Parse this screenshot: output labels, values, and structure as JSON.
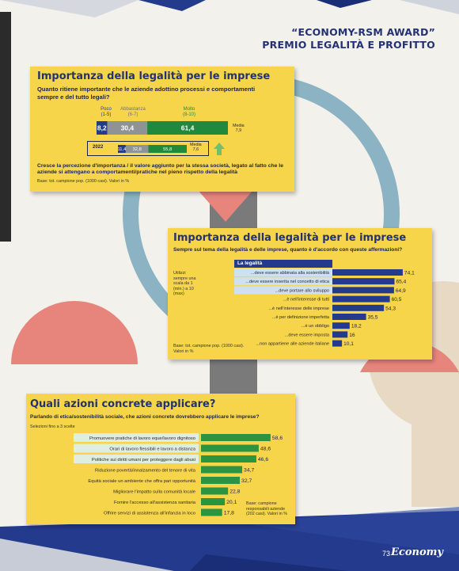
{
  "header": {
    "line1": "“ECONOMY-RSM AWARD”",
    "line2": "PREMIO LEGALITÀ E PROFITTO"
  },
  "chart1": {
    "title": "Importanza della legalità per le imprese",
    "question": "Quanto ritiene importante che le aziende adottino processi e comportamenti sempre e del tutto legali?",
    "legend": [
      {
        "label": "Poco",
        "range": "(1-5)",
        "color": "#243a8c"
      },
      {
        "label": "Abbastanza",
        "range": "(6-7)",
        "color": "#8d9396"
      },
      {
        "label": "Molto",
        "range": "(8-10)",
        "color": "#1f8a3b"
      }
    ],
    "media_label": "Media",
    "media_value": "7,9",
    "year": "2022",
    "media_2022_label": "Media",
    "media_2022_value": "7,6",
    "note": "Cresce la percezione d'importanza / il valore aggiunto per la stessa società, legato al fatto che le aziende si attengano a comportamenti/pratiche nel pieno rispetto della legalità",
    "base": "Base: tot. campione pop. (1000 casi). Valori in %"
  },
  "chart2": {
    "title": "Importanza della legalità per le imprese",
    "question": "Sempre sul tema della legalità e delle imprese, quanto è d'accordo con queste affermazioni?",
    "header_label": "La legalità",
    "side_note": "Utilizzi sempre una scala da 1 (min.) a 10 (max)",
    "base": "Base: tot. campione pop. (1000 casi). Valori in %"
  },
  "chart3": {
    "title": "Quali azioni concrete applicare?",
    "question": "Parlando di etica/sostenibilità sociale, che azioni concrete dovrebbero applicare le imprese?",
    "sub": "Selezioni fino a 3 scelte",
    "base": "Base: campione responsabili aziende (202 casi). Valori in %"
  },
  "footer": {
    "page": "73",
    "brand": "Economy"
  },
  "chart_data": [
    {
      "type": "bar",
      "stacked": true,
      "title": "Importanza della legalità per le imprese",
      "categories": [
        "Oggi",
        "2022"
      ],
      "series": [
        {
          "name": "Poco (1-5)",
          "values": [
            8.2,
            11.4
          ]
        },
        {
          "name": "Abbastanza (6-7)",
          "values": [
            30.4,
            32.8
          ]
        },
        {
          "name": "Molto (8-10)",
          "values": [
            61.4,
            55.8
          ]
        }
      ],
      "labels": [
        [
          "8,2",
          "30,4",
          "61,4"
        ],
        [
          "11,4",
          "32,8",
          "55,8"
        ]
      ],
      "xlim": [
        0,
        100
      ]
    },
    {
      "type": "bar",
      "orientation": "horizontal",
      "title": "Importanza della legalità per le imprese",
      "categories": [
        "...deve essere abbinata alla sostenibilità",
        "...deve essere inserita nel concetto di etica",
        "...deve portare allo sviluppo",
        "...è nell'interesse di tutti",
        "...è nell'interesse delle imprese",
        "...è per definizione imperfetta",
        "...è un obbligo",
        "...deve essere imposta",
        "...non appartiene alle aziende italiane"
      ],
      "values": [
        74.1,
        65.4,
        64.9,
        60.5,
        54.3,
        35.5,
        18.2,
        16,
        10.1
      ],
      "labels": [
        "74,1",
        "65,4",
        "64,9",
        "60,5",
        "54,3",
        "35,5",
        "18,2",
        "16",
        "10,1"
      ],
      "highlighted": [
        0,
        1,
        2
      ],
      "xlim": [
        0,
        100
      ]
    },
    {
      "type": "bar",
      "orientation": "horizontal",
      "title": "Quali azioni concrete applicare?",
      "categories": [
        "Promuovere pratiche di lavoro eque/lavoro dignitoso",
        "Orari di lavoro flessibili e lavoro a distanza",
        "Politiche sui diritti umani per proteggere dagli abusi",
        "Riduzione povertà/innalzamento del tenore di vita",
        "Equità sociale un ambiente che offra pari opportunità",
        "Migliorare l'impatto sulla comunità locale",
        "Fornire l'accesso all'assistenza sanitaria",
        "Offrire servizi di assistenza all'infanzia in loco"
      ],
      "values": [
        58.6,
        48.6,
        46.6,
        34.7,
        32.7,
        22.8,
        20.1,
        17.8
      ],
      "labels": [
        "58,6",
        "48,6",
        "46,6",
        "34,7",
        "32,7",
        "22,8",
        "20,1",
        "17,8"
      ],
      "highlighted": [
        0,
        1,
        2
      ],
      "xlim": [
        0,
        100
      ]
    }
  ]
}
